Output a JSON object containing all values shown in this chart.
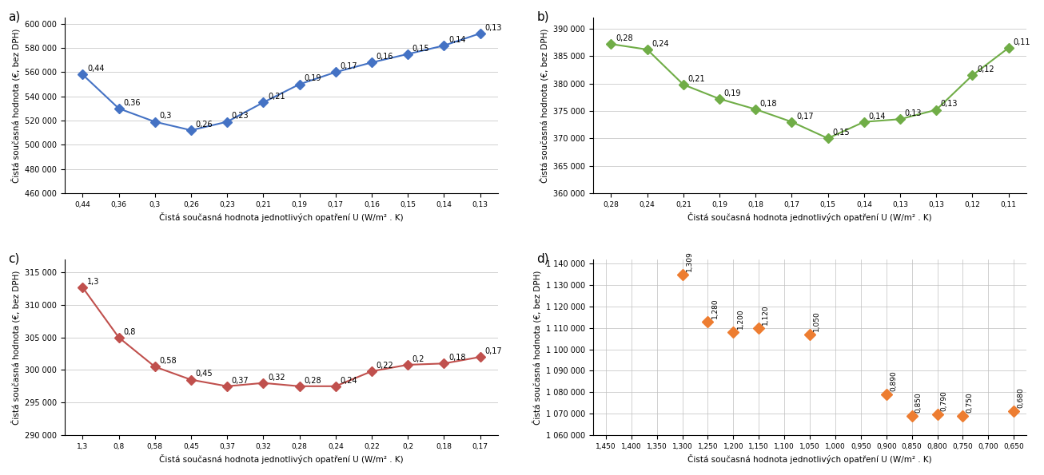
{
  "a": {
    "x_labels": [
      "0,44",
      "0,36",
      "0,3",
      "0,26",
      "0,23",
      "0,21",
      "0,19",
      "0,17",
      "0,16",
      "0,15",
      "0,14",
      "0,13"
    ],
    "y_vals": [
      558000,
      530000,
      519000,
      512000,
      519000,
      535000,
      550000,
      560000,
      568000,
      575000,
      582000,
      592000
    ],
    "color": "#4472C4",
    "marker": "D",
    "ylim": [
      460000,
      605000
    ],
    "yticks": [
      460000,
      480000,
      500000,
      520000,
      540000,
      560000,
      580000,
      600000
    ],
    "label": "a)",
    "has_line": true,
    "grid_x": false,
    "grid_y": true
  },
  "b": {
    "x_labels": [
      "0,28",
      "0,24",
      "0,21",
      "0,19",
      "0,18",
      "0,17",
      "0,15",
      "0,14",
      "0,13",
      "0,13",
      "0,12",
      "0,11"
    ],
    "y_vals": [
      387200,
      386200,
      379800,
      377200,
      375300,
      373000,
      370000,
      373000,
      373500,
      375200,
      381500,
      386500
    ],
    "color": "#70AD47",
    "marker": "D",
    "ylim": [
      360000,
      392000
    ],
    "yticks": [
      360000,
      365000,
      370000,
      375000,
      380000,
      385000,
      390000
    ],
    "label": "b)",
    "has_line": true,
    "grid_x": false,
    "grid_y": true
  },
  "c": {
    "x_labels": [
      "1,3",
      "0,8",
      "0,58",
      "0,45",
      "0,37",
      "0,32",
      "0,28",
      "0,24",
      "0,22",
      "0,2",
      "0,18",
      "0,17"
    ],
    "y_vals": [
      312700,
      305000,
      300500,
      298500,
      297500,
      298000,
      297500,
      297500,
      299800,
      300800,
      301000,
      302000
    ],
    "color": "#C0504D",
    "marker": "D",
    "ylim": [
      290000,
      317000
    ],
    "yticks": [
      290000,
      295000,
      300000,
      305000,
      310000,
      315000
    ],
    "label": "c)",
    "has_line": true,
    "grid_x": false,
    "grid_y": true
  },
  "d": {
    "x_labels": [
      "1,450",
      "1,400",
      "1,350",
      "1,300",
      "1,250",
      "1,200",
      "1,150",
      "1,100",
      "1,050",
      "1,000",
      "0,950",
      "0,900",
      "0,850",
      "0,800",
      "0,750",
      "0,700",
      "0,650"
    ],
    "point_labels": [
      "",
      "",
      "",
      "1,309",
      "1,280",
      "1,200",
      "1,120",
      "",
      "1,050",
      "",
      "",
      "0,890",
      "0,850",
      "0,790",
      "0,750",
      "",
      "0,680"
    ],
    "y_vals": [
      null,
      null,
      null,
      1135000,
      1113000,
      1108000,
      1110000,
      null,
      1107000,
      null,
      null,
      1079000,
      1069000,
      1069500,
      1069000,
      null,
      1071000
    ],
    "color": "#ED7D31",
    "marker": "D",
    "ylim": [
      1060000,
      1142000
    ],
    "yticks": [
      1060000,
      1070000,
      1080000,
      1090000,
      1100000,
      1110000,
      1120000,
      1130000,
      1140000
    ],
    "label": "d)",
    "has_line": false,
    "grid_x": true,
    "grid_y": true
  },
  "xlabel": "Čistá současná hodnota jednotlivých opatření U (W/m² . K)",
  "ylabel": "Čistá současná hodnota (€, bez DPH)"
}
